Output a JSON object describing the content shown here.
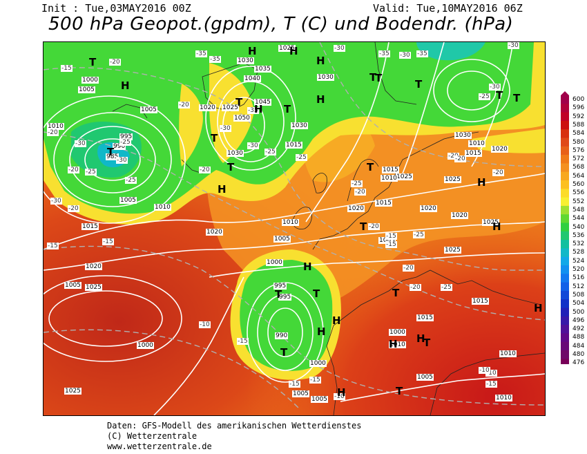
{
  "header": {
    "init": "Init : Tue,03MAY2016 00Z",
    "valid": "Valid: Tue,10MAY2016 06Z",
    "title": "500 hPa Geopot.(gpdm), T (C) und Bodendr. (hPa)"
  },
  "footer": {
    "line1": "Daten: GFS-Modell des amerikanischen Wetterdienstes",
    "line2": "(C) Wetterzentrale",
    "line3": "www.wetterzentrale.de"
  },
  "legend": {
    "values": [
      "600",
      "596",
      "592",
      "588",
      "584",
      "580",
      "576",
      "572",
      "568",
      "564",
      "560",
      "556",
      "552",
      "548",
      "544",
      "540",
      "536",
      "532",
      "528",
      "524",
      "520",
      "516",
      "512",
      "508",
      "504",
      "500",
      "496",
      "492",
      "488",
      "484",
      "480",
      "476"
    ],
    "colors": [
      "#a0004a",
      "#b0003a",
      "#c00028",
      "#cc1010",
      "#d83010",
      "#e04818",
      "#e86018",
      "#f07a18",
      "#f49020",
      "#f8a820",
      "#fcc020",
      "#fcdc28",
      "#f8f030",
      "#a0e030",
      "#60d830",
      "#30d040",
      "#20c870",
      "#10c0a0",
      "#10b8c8",
      "#10a8e8",
      "#1090f0",
      "#1078f0",
      "#1060e8",
      "#1048d8",
      "#1030c8",
      "#2020b8",
      "#3818a8",
      "#501098",
      "#600888",
      "#680878",
      "#700868",
      "#780058"
    ]
  },
  "map": {
    "pressure_labels": [
      "1000",
      "1005",
      "1005",
      "1010",
      "995",
      "990",
      "985",
      "1005",
      "1010",
      "1015",
      "1020",
      "1025",
      "1005",
      "1000",
      "1025",
      "1020",
      "1025",
      "1035",
      "1040",
      "1030",
      "1045",
      "1050",
      "1030",
      "1025",
      "1015",
      "1030",
      "1030",
      "1020",
      "1015",
      "1025",
      "1010",
      "1005",
      "1000",
      "995",
      "995",
      "990",
      "1000",
      "1005",
      "1005",
      "1010",
      "1015",
      "1020",
      "1025",
      "1030",
      "1020",
      "1025",
      "1015",
      "1005",
      "1020",
      "1025",
      "1000",
      "1005",
      "1015",
      "1010",
      "1010",
      "1010",
      "1010",
      "1020",
      "1015"
    ],
    "temperature_labels": [
      "-15",
      "-20",
      "-25",
      "-30",
      "-25",
      "-30",
      "-20",
      "-25",
      "-30",
      "-20",
      "-20",
      "-15",
      "-15",
      "-20",
      "-20",
      "-35",
      "-35",
      "-30",
      "-35",
      "-30",
      "-25",
      "-25",
      "-30",
      "-35",
      "-35",
      "-30",
      "-25",
      "-30",
      "-30",
      "-20",
      "-20",
      "-20",
      "-20",
      "-25",
      "-20",
      "-15",
      "-15",
      "-10",
      "-10",
      "-15",
      "-20",
      "-25",
      "-25",
      "-20",
      "-10",
      "-10",
      "-15",
      "-15",
      "-15"
    ],
    "highs_lows": [
      "T",
      "H",
      "T",
      "T",
      "H",
      "H",
      "T",
      "H",
      "T",
      "T",
      "H",
      "T",
      "H",
      "H",
      "T",
      "H",
      "H",
      "T",
      "T",
      "T",
      "T",
      "T",
      "H",
      "T",
      "T",
      "H",
      "H",
      "H",
      "H",
      "H",
      "T",
      "T",
      "T",
      "H",
      "T"
    ]
  }
}
